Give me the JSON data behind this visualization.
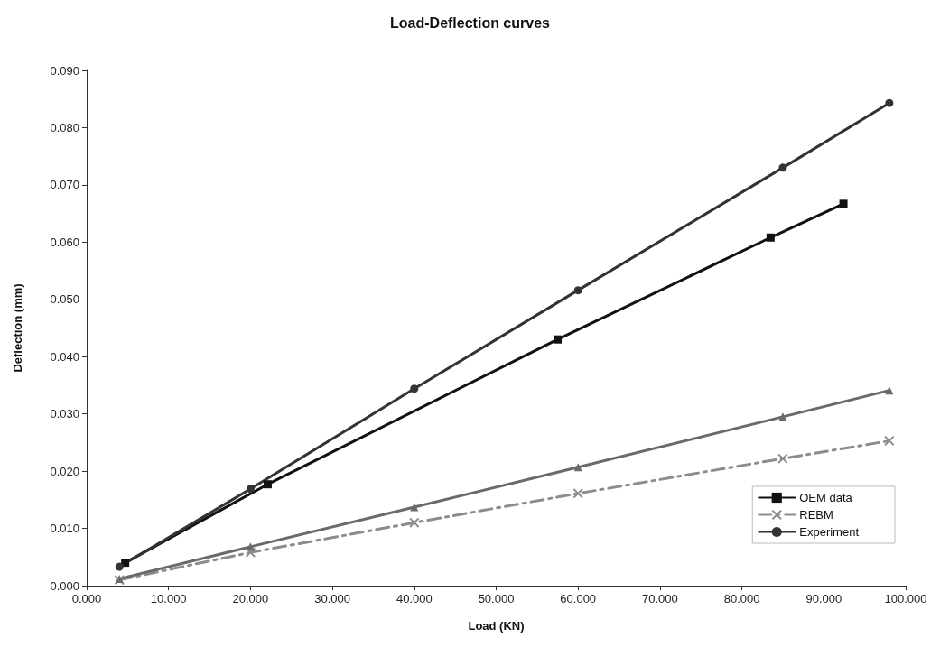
{
  "chart_data": {
    "type": "line",
    "title": "Load-Deflection curves",
    "xlabel": "Load (KN)",
    "ylabel": "Deflection (mm)",
    "xlim": [
      0,
      100
    ],
    "ylim": [
      0,
      0.09
    ],
    "xticks": [
      {
        "value": 0,
        "label": "0.000"
      },
      {
        "value": 10,
        "label": "10.000"
      },
      {
        "value": 20,
        "label": "20.000"
      },
      {
        "value": 30,
        "label": "30.000"
      },
      {
        "value": 40,
        "label": "40.000"
      },
      {
        "value": 50,
        "label": "50.000"
      },
      {
        "value": 60,
        "label": "60.000"
      },
      {
        "value": 70,
        "label": "70.000"
      },
      {
        "value": 80,
        "label": "80.000"
      },
      {
        "value": 90,
        "label": "90.000"
      },
      {
        "value": 100,
        "label": "100.000"
      }
    ],
    "yticks": [
      {
        "value": 0,
        "label": "0.000"
      },
      {
        "value": 0.01,
        "label": "0.010"
      },
      {
        "value": 0.02,
        "label": "0.020"
      },
      {
        "value": 0.03,
        "label": "0.030"
      },
      {
        "value": 0.04,
        "label": "0.040"
      },
      {
        "value": 0.05,
        "label": "0.050"
      },
      {
        "value": 0.06,
        "label": "0.060"
      },
      {
        "value": 0.07,
        "label": "0.070"
      },
      {
        "value": 0.08,
        "label": "0.080"
      },
      {
        "value": 0.09,
        "label": "0.090"
      }
    ],
    "grid": false,
    "legend": "bottom right",
    "series": [
      {
        "name": "OEM data",
        "color": "#111111",
        "marker": "square",
        "line_style": "solid",
        "x": [
          4.7,
          22.1,
          57.5,
          83.5,
          92.4
        ],
        "values": [
          0.004,
          0.0177,
          0.043,
          0.0608,
          0.0667
        ]
      },
      {
        "name": "REBM",
        "color": "#8c8c8c",
        "marker": "cross",
        "line_style": "dashed",
        "x": [
          4,
          20,
          40,
          60,
          85,
          98
        ],
        "values": [
          0.001,
          0.0058,
          0.011,
          0.0161,
          0.0222,
          0.0253
        ]
      },
      {
        "color": "#6a6a6a",
        "marker": "triangle",
        "line_style": "solid",
        "x": [
          4,
          20,
          40,
          60,
          85,
          98
        ],
        "values": [
          0.0012,
          0.0068,
          0.0137,
          0.0207,
          0.0295,
          0.0341
        ]
      },
      {
        "name": "Experiment",
        "color": "#333333",
        "marker": "circle",
        "line_style": "solid",
        "x": [
          4,
          20,
          40,
          60,
          85,
          98
        ],
        "values": [
          0.0033,
          0.0169,
          0.0344,
          0.0516,
          0.073,
          0.0843
        ]
      }
    ]
  }
}
